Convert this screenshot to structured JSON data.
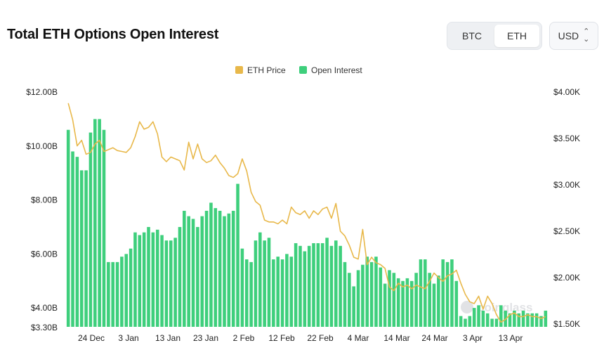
{
  "header": {
    "title": "Total ETH Options Open Interest",
    "toggle": {
      "options": [
        "BTC",
        "ETH"
      ],
      "active": "ETH"
    },
    "currency": {
      "value": "USD",
      "icon": "chevron-updown-icon"
    }
  },
  "watermark": "coinglass",
  "colors": {
    "price": "#e8b84a",
    "oi": "#3ecf7c"
  },
  "chart_data": {
    "type": "bar",
    "legend": [
      "ETH Price",
      "Open Interest"
    ],
    "legend_position": "top-center",
    "grid": false,
    "x_ticks": [
      "24 Dec",
      "3 Jan",
      "13 Jan",
      "23 Jan",
      "2 Feb",
      "12 Feb",
      "22 Feb",
      "4 Mar",
      "14 Mar",
      "24 Mar",
      "3 Apr",
      "13 Apr"
    ],
    "left_axis": {
      "ticks": [
        "$12.00B",
        "$10.00B",
        "$8.00B",
        "$6.00B",
        "$4.00B",
        "$3.30B"
      ],
      "values": [
        12,
        10,
        8,
        6,
        4,
        3.3
      ],
      "range": [
        3.3,
        12
      ],
      "unit": "B"
    },
    "right_axis": {
      "ticks": [
        "$4.00K",
        "$3.50K",
        "$3.00K",
        "$2.50K",
        "$2.00K",
        "$1.50K"
      ],
      "values": [
        4.0,
        3.5,
        3.0,
        2.5,
        2.0,
        1.5
      ],
      "range": [
        1.5,
        4.15
      ],
      "unit": "K"
    },
    "series": [
      {
        "name": "Open Interest",
        "kind": "bar",
        "axis": "left",
        "values": [
          10.6,
          9.8,
          9.6,
          9.1,
          9.1,
          10.5,
          11.0,
          11.0,
          10.6,
          5.7,
          5.7,
          5.7,
          5.9,
          6.0,
          6.2,
          6.8,
          6.7,
          6.8,
          7.0,
          6.8,
          6.9,
          6.7,
          6.5,
          6.5,
          6.6,
          7.0,
          7.6,
          7.4,
          7.3,
          7.0,
          7.4,
          7.6,
          7.9,
          7.7,
          7.6,
          7.4,
          7.5,
          7.6,
          8.6,
          6.2,
          5.8,
          5.7,
          6.5,
          6.8,
          6.5,
          6.6,
          5.8,
          5.9,
          5.8,
          6.0,
          5.9,
          6.4,
          6.3,
          6.1,
          6.3,
          6.4,
          6.4,
          6.4,
          6.6,
          6.3,
          6.5,
          6.3,
          5.7,
          5.3,
          4.8,
          5.4,
          5.6,
          5.9,
          5.7,
          5.9,
          5.5,
          4.9,
          5.4,
          5.3,
          5.1,
          5.0,
          5.1,
          5.0,
          5.3,
          5.8,
          5.8,
          5.3,
          4.9,
          5.2,
          5.8,
          5.7,
          5.8,
          5.0,
          3.7,
          3.6,
          3.7,
          4.0,
          4.1,
          3.9,
          3.8,
          3.6,
          3.6,
          4.1,
          3.9,
          3.8,
          3.9,
          3.8,
          3.9,
          3.8,
          3.8,
          3.8,
          3.7,
          3.9
        ]
      },
      {
        "name": "ETH Price",
        "kind": "line",
        "axis": "right",
        "values": [
          3.88,
          3.7,
          3.42,
          3.48,
          3.33,
          3.35,
          3.44,
          3.48,
          3.36,
          3.38,
          3.4,
          3.37,
          3.36,
          3.35,
          3.4,
          3.52,
          3.68,
          3.6,
          3.62,
          3.68,
          3.55,
          3.3,
          3.25,
          3.3,
          3.28,
          3.26,
          3.16,
          3.46,
          3.28,
          3.44,
          3.28,
          3.24,
          3.26,
          3.32,
          3.24,
          3.18,
          3.1,
          3.08,
          3.12,
          3.28,
          3.15,
          2.92,
          2.82,
          2.78,
          2.62,
          2.6,
          2.6,
          2.58,
          2.62,
          2.58,
          2.76,
          2.7,
          2.68,
          2.72,
          2.64,
          2.72,
          2.68,
          2.74,
          2.76,
          2.64,
          2.8,
          2.5,
          2.45,
          2.35,
          2.22,
          2.2,
          2.52,
          2.14,
          2.22,
          2.16,
          2.14,
          2.1,
          1.9,
          1.86,
          1.94,
          1.9,
          1.92,
          1.88,
          1.92,
          1.9,
          1.88,
          1.96,
          2.05,
          2.0,
          1.96,
          2.02,
          2.04,
          2.08,
          1.94,
          1.82,
          1.74,
          1.72,
          1.8,
          1.66,
          1.8,
          1.72,
          1.6,
          1.52,
          1.55,
          1.6,
          1.62,
          1.58,
          1.58,
          1.6,
          1.58,
          1.58,
          1.56,
          1.58
        ]
      }
    ]
  }
}
